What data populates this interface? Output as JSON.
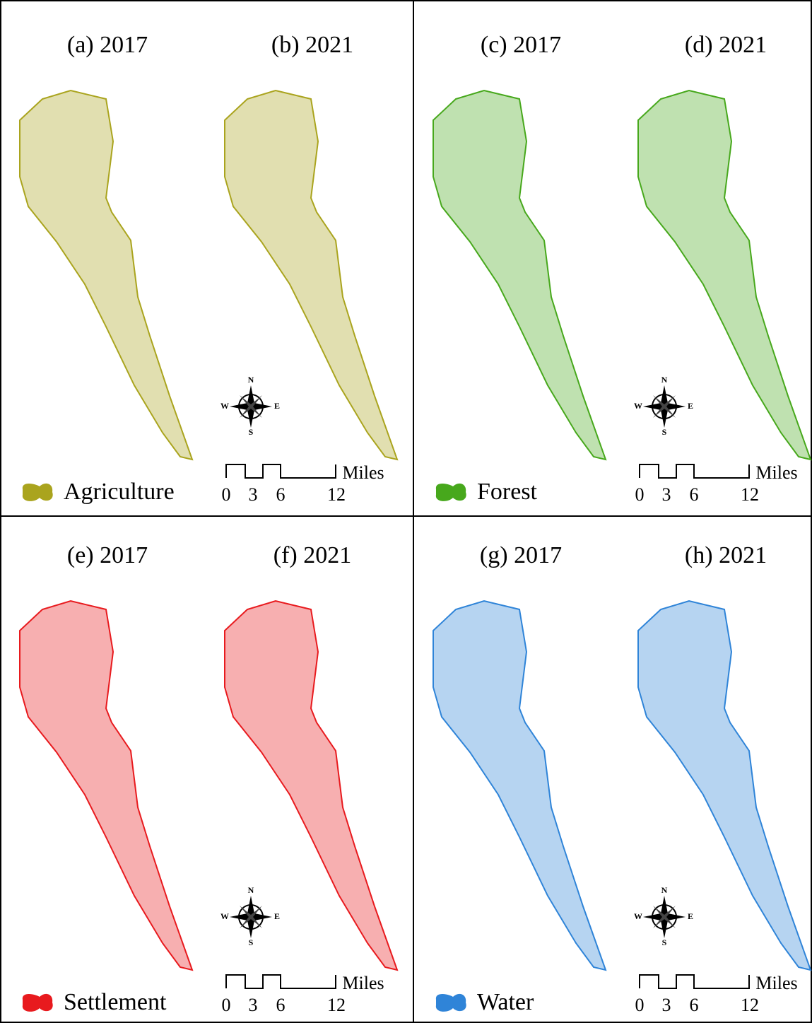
{
  "panels": [
    {
      "maps": [
        {
          "title": "(a) 2017"
        },
        {
          "title": "(b) 2021"
        }
      ],
      "legend": {
        "label": "Agriculture",
        "color": "#aaa41e"
      },
      "compass": {
        "north": "N",
        "east": "E",
        "south": "S",
        "west": "W"
      },
      "scale": {
        "ticks": [
          "0",
          "3",
          "6",
          "12"
        ],
        "unit": "Miles"
      }
    },
    {
      "maps": [
        {
          "title": "(c) 2017"
        },
        {
          "title": "(d) 2021"
        }
      ],
      "legend": {
        "label": "Forest",
        "color": "#47a81c"
      },
      "compass": {
        "north": "N",
        "east": "E",
        "south": "S",
        "west": "W"
      },
      "scale": {
        "ticks": [
          "0",
          "3",
          "6",
          "12"
        ],
        "unit": "Miles"
      }
    },
    {
      "maps": [
        {
          "title": "(e) 2017"
        },
        {
          "title": "(f) 2021"
        }
      ],
      "legend": {
        "label": "Settlement",
        "color": "#e81a1e"
      },
      "compass": {
        "north": "N",
        "east": "E",
        "south": "S",
        "west": "W"
      },
      "scale": {
        "ticks": [
          "0",
          "3",
          "6",
          "12"
        ],
        "unit": "Miles"
      }
    },
    {
      "maps": [
        {
          "title": "(g) 2017"
        },
        {
          "title": "(h) 2021"
        }
      ],
      "legend": {
        "label": "Water",
        "color": "#2f84d8"
      },
      "compass": {
        "north": "N",
        "east": "E",
        "south": "S",
        "west": "W"
      },
      "scale": {
        "ticks": [
          "0",
          "3",
          "6",
          "12"
        ],
        "unit": "Miles"
      }
    }
  ]
}
